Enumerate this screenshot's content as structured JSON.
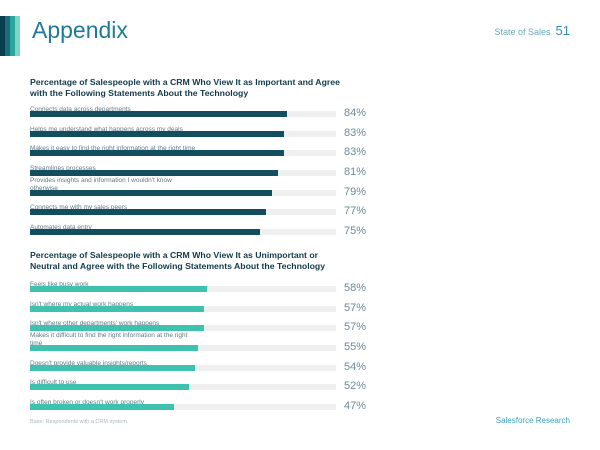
{
  "header": {
    "title": "Appendix",
    "report": "State of Sales",
    "page": "51"
  },
  "colors": {
    "accent": "#1f7a9a",
    "important_bar": "#134e5e",
    "unimportant_bar": "#3fc1b0",
    "track": "#eef0f0",
    "stripes": [
      "#0a3d4d",
      "#1a6b7e",
      "#2aa79a",
      "#7fd3c7"
    ]
  },
  "section1": {
    "title": "Percentage of Salespeople with a CRM Who View It as Important and Agree with the Following Statements About the Technology",
    "rows": [
      {
        "label": "Connects data across departments",
        "value": 84
      },
      {
        "label": "Helps me understand what happens across my deals",
        "value": 83
      },
      {
        "label": "Makes it easy to find the right information at the right time",
        "value": 83
      },
      {
        "label": "Streamlines processes",
        "value": 81
      },
      {
        "label": "Provides insights and information I wouldn't know otherwise",
        "value": 79
      },
      {
        "label": "Connects me with my sales peers",
        "value": 77
      },
      {
        "label": "Automates data entry",
        "value": 75
      }
    ]
  },
  "section2": {
    "title": "Percentage of Salespeople with a CRM Who View It as Unimportant or Neutral and Agree with the Following Statements About the Technology",
    "rows": [
      {
        "label": "Feels like busy work",
        "value": 58
      },
      {
        "label": "Isn't where my actual work happens",
        "value": 57
      },
      {
        "label": "Isn't where other departments' work happens",
        "value": 57
      },
      {
        "label": "Makes it difficult to find the right information at the right time",
        "value": 55
      },
      {
        "label": "Doesn't provide valuable insights/reports",
        "value": 54
      },
      {
        "label": "Is difficult to use",
        "value": 52
      },
      {
        "label": "Is often broken or doesn't work properly",
        "value": 47
      }
    ]
  },
  "footer": {
    "note": "Base: Respondents with a CRM system.",
    "brand": "Salesforce Research"
  }
}
